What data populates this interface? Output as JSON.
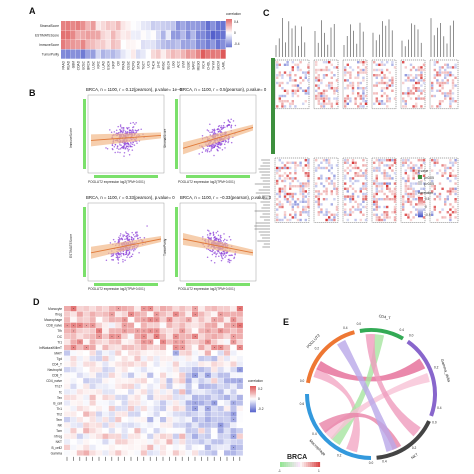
{
  "panels": {
    "A": {
      "label": "A",
      "rows": [
        "StromalScore",
        "ESTIMATEScore",
        "ImmuneScore",
        "TumorPurity"
      ],
      "columns": [
        "PAAD",
        "READ",
        "GBM",
        "COAD",
        "UCEC",
        "BRCA",
        "LUSC",
        "KIRC",
        "LUAD",
        "ESCA",
        "KIRP",
        "OV",
        "PRAD",
        "CESC",
        "PCPG",
        "STAD",
        "TGCT",
        "UCS",
        "THCA",
        "LIHC",
        "HNSC",
        "BLCA",
        "LGG",
        "ACC",
        "UVM",
        "DLBC",
        "SARC",
        "MESO",
        "KICH",
        "CHOL",
        "THYM",
        "SKCM",
        "LAML"
      ],
      "legend_title": "correlation",
      "legend_ticks": [
        "0.4",
        "0",
        "-0.4"
      ]
    },
    "B": {
      "label": "B",
      "subplots": [
        {
          "title": "BRCA, n = 1100, r = 0.12(pearson), p.value= 1e−0",
          "ylabel": "ImmuneScore",
          "xlabel": "POGLUT2 expression log2(TPM+0.001)",
          "r": 0.12
        },
        {
          "title": "BRCA, n = 1100, r = 0.5(pearson), p.value= 0",
          "ylabel": "StromalScore",
          "xlabel": "POGLUT2 expression log2(TPM+0.001)",
          "r": 0.5
        },
        {
          "title": "BRCA, n = 1100, r = 0.33(pearson), p.value= 0",
          "ylabel": "ESTIMATEScore",
          "xlabel": "POGLUT2 expression log2(TPM+0.001)",
          "r": 0.33
        },
        {
          "title": "BRCA, n = 1100, r = −0.33(pearson), p.value= 0",
          "ylabel": "TumorPurity",
          "xlabel": "POGLUT2 expression log2(TPM+0.001)",
          "r": -0.33
        }
      ]
    },
    "C": {
      "label": "C",
      "legend_pvalue_title": "p.value",
      "legend_pvalue": [
        "p<0.05",
        "p>0.05"
      ],
      "legend_corr_title": "correlation",
      "legend_corr": [
        "0.5",
        "0",
        "-0.5"
      ]
    },
    "D": {
      "label": "D",
      "rows": [
        "Monocyte",
        "iTreg",
        "Macrophage",
        "CD8_naive",
        "Tfh",
        "DC",
        "Tr1",
        "InfNaturalKillerT",
        "MAIT",
        "Tgd",
        "CD4_T",
        "Neutrophil",
        "CD8_T",
        "CD4_naive",
        "Th17",
        "Tc",
        "Tex",
        "B_cell",
        "Th1",
        "Th2",
        "Tem",
        "NK",
        "Tcm",
        "nTreg",
        "NKT",
        "B_cell2",
        "Gamma"
      ],
      "legend_title": "correlation",
      "legend_ticks": [
        "0.2",
        "0",
        "-0.2"
      ]
    },
    "E": {
      "label": "E",
      "segments": [
        {
          "name": "POGLUT2",
          "color": "#ee7733",
          "ticks": [
            "0.0",
            "0.2",
            "0.4"
          ]
        },
        {
          "name": "CD4_T",
          "color": "#33aa55",
          "ticks": [
            "0.0",
            "0.4"
          ]
        },
        {
          "name": "Gamma_delta",
          "color": "#8866cc",
          "ticks": [
            "0.0",
            "0.2",
            "0.4"
          ]
        },
        {
          "name": "NKT",
          "color": "#444444",
          "ticks": [
            "0.0",
            "0.2",
            "0.4"
          ]
        },
        {
          "name": "Macrophage",
          "color": "#3399dd",
          "ticks": [
            "0.0",
            "0.2",
            "0.4",
            "0.6"
          ]
        }
      ],
      "legend_title": "BRCA",
      "legend_ticks": [
        "-1",
        "1"
      ]
    }
  },
  "chart_data": [
    {
      "type": "heatmap",
      "id": "A",
      "rows": [
        "StromalScore",
        "ESTIMATEScore",
        "ImmuneScore",
        "TumorPurity"
      ],
      "value_range": [
        -0.4,
        0.4
      ]
    },
    {
      "type": "scatter",
      "id": "B",
      "series": [
        {
          "r": 0.12
        },
        {
          "r": 0.5
        },
        {
          "r": 0.33
        },
        {
          "r": -0.33
        }
      ]
    },
    {
      "type": "heatmap",
      "id": "C",
      "value_range": [
        -0.5,
        0.5
      ]
    },
    {
      "type": "heatmap",
      "id": "D",
      "value_range": [
        -0.2,
        0.2
      ]
    }
  ]
}
